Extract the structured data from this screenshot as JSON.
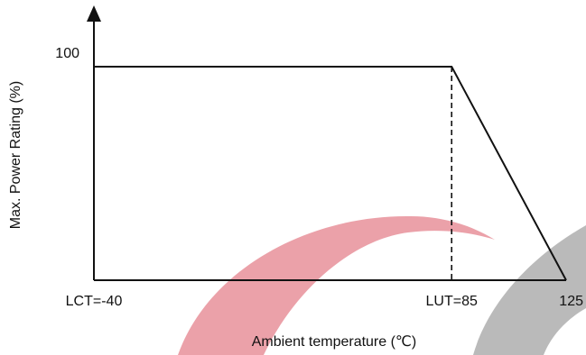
{
  "chart_data": {
    "type": "line",
    "xlabel": "Ambient temperature (℃)",
    "ylabel": "Max. Power Rating (%)",
    "x_ticks": [
      {
        "value": -40,
        "label": "LCT=-40"
      },
      {
        "value": 85,
        "label": "LUT=85"
      },
      {
        "value": 125,
        "label": "125"
      }
    ],
    "y_ticks": [
      {
        "value": 100,
        "label": "100"
      }
    ],
    "xlim": [
      -40,
      125
    ],
    "ylim": [
      0,
      100
    ],
    "series": [
      {
        "points": [
          {
            "x": -40,
            "y": 100
          },
          {
            "x": 85,
            "y": 100
          },
          {
            "x": 125,
            "y": 0
          }
        ]
      }
    ],
    "reference_lines": [
      {
        "orientation": "vertical",
        "x": 85,
        "from_y": 0,
        "to_y": 100,
        "style": "dashed"
      }
    ],
    "grid": false,
    "colors": {
      "line": "#111111",
      "watermark_red": "#e8919a",
      "watermark_gray": "#b2b2b2"
    }
  }
}
